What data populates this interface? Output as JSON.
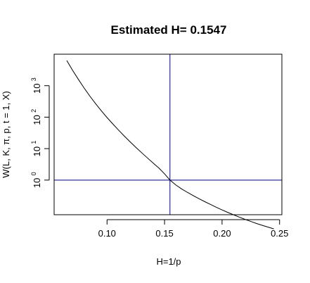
{
  "chart_data": {
    "type": "line",
    "title": "Estimated H= 0.1547",
    "xlabel": "H=1/p",
    "ylabel": "W(L, K, π, p, t = 1, X)",
    "xlim": [
      0.054,
      0.252
    ],
    "ylim_log10": [
      -1.1,
      4.0
    ],
    "y_scale": "log",
    "x_ticks": [
      {
        "value": 0.1,
        "label": "0.10"
      },
      {
        "value": 0.15,
        "label": "0.15"
      },
      {
        "value": 0.2,
        "label": "0.20"
      },
      {
        "value": 0.25,
        "label": "0.25"
      }
    ],
    "y_ticks": [
      {
        "exp": 0,
        "base": "10",
        "sup": "0"
      },
      {
        "exp": 1,
        "base": "10",
        "sup": "1"
      },
      {
        "exp": 2,
        "base": "10",
        "sup": "2"
      },
      {
        "exp": 3,
        "base": "10",
        "sup": "3"
      }
    ],
    "series": [
      {
        "x": [
          0.065,
          0.07,
          0.075,
          0.08,
          0.085,
          0.09,
          0.095,
          0.1,
          0.105,
          0.11,
          0.115,
          0.12,
          0.125,
          0.13,
          0.135,
          0.14,
          0.145,
          0.15,
          0.1547,
          0.16,
          0.165,
          0.17,
          0.175,
          0.18,
          0.185,
          0.19,
          0.195,
          0.2,
          0.205,
          0.21,
          0.215,
          0.22,
          0.225,
          0.23,
          0.235,
          0.24,
          0.245
        ],
        "y": [
          6300,
          3100,
          1600,
          850,
          470,
          270,
          160,
          97,
          61,
          38.7,
          25.1,
          16.5,
          11.0,
          7.46,
          5.1,
          3.51,
          2.42,
          1.58,
          1.0,
          0.69,
          0.52,
          0.405,
          0.32,
          0.255,
          0.206,
          0.168,
          0.137,
          0.113,
          0.094,
          0.079,
          0.0665,
          0.0565,
          0.0485,
          0.0418,
          0.0365,
          0.032,
          0.0282
        ]
      }
    ],
    "reference_lines": {
      "vertical_x": 0.1547,
      "horizontal_y": 1
    },
    "colors": {
      "curve": "#000000",
      "reference": "#00007f",
      "frame": "#000000"
    }
  }
}
